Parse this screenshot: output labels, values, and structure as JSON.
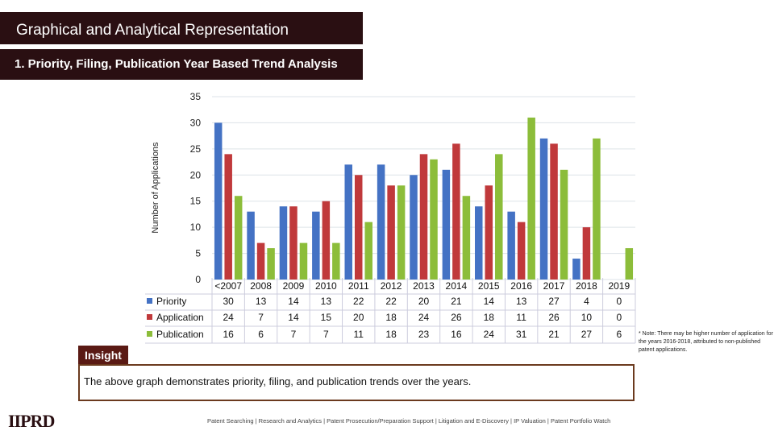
{
  "header": {
    "title": "Graphical and Analytical Representation",
    "subtitle": "1. Priority, Filing, Publication Year Based Trend Analysis"
  },
  "chart_data": {
    "type": "bar",
    "ylabel": "Number of Applications",
    "xlabel": "",
    "ylim": [
      0,
      35
    ],
    "yticks": [
      0,
      5,
      10,
      15,
      20,
      25,
      30,
      35
    ],
    "grid": true,
    "legend": "data-table-left",
    "categories": [
      "<2007",
      "2008",
      "2009",
      "2010",
      "2011",
      "2012",
      "2013",
      "2014",
      "2015",
      "2016",
      "2017",
      "2018",
      "2019"
    ],
    "series": [
      {
        "name": "Priority",
        "color": "#4472c4",
        "values": [
          30,
          13,
          14,
          13,
          22,
          22,
          20,
          21,
          14,
          13,
          27,
          4,
          0
        ]
      },
      {
        "name": "Application",
        "color": "#c0393b",
        "values": [
          24,
          7,
          14,
          15,
          20,
          18,
          24,
          26,
          18,
          11,
          26,
          10,
          0
        ]
      },
      {
        "name": "Publication",
        "color": "#8cbd3a",
        "values": [
          16,
          6,
          7,
          7,
          11,
          18,
          23,
          16,
          24,
          31,
          21,
          27,
          6
        ]
      }
    ]
  },
  "insight": {
    "label": "Insight",
    "text": "The above graph demonstrates priority, filing, and publication trends over the years."
  },
  "note": "* Note: There may be higher number of application for the years 2016-2018, attributed to non-published patent applications.",
  "footer": "Patent Searching | Research and Analytics | Patent Prosecution/Preparation Support | Litigation and E-Discovery | IP Valuation | Patent Portfolio Watch",
  "logo": "IIPRD"
}
